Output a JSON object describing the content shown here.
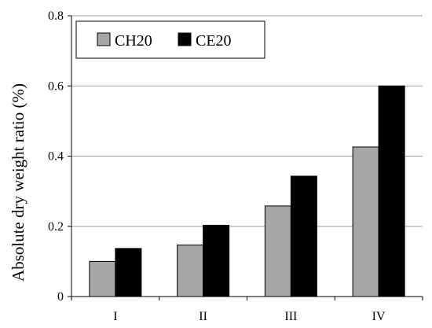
{
  "chart_data": {
    "type": "bar",
    "title": "",
    "xlabel": "",
    "ylabel": "Absolute dry weight ratio (%)",
    "categories": [
      "I",
      "II",
      "III",
      "IV"
    ],
    "series": [
      {
        "name": "CH20",
        "values": [
          0.1,
          0.147,
          0.258,
          0.426
        ],
        "color": "#a6a6a6"
      },
      {
        "name": "CE20",
        "values": [
          0.137,
          0.203,
          0.343,
          0.6
        ],
        "color": "#000000"
      }
    ],
    "ylim": [
      0,
      0.8
    ],
    "yticks": [
      0,
      0.2,
      0.4,
      0.6,
      0.8
    ],
    "ytick_labels": [
      "0",
      "0.2",
      "0.4",
      "0.6",
      "0.8"
    ],
    "grid": true,
    "legend_position": "top-left"
  }
}
